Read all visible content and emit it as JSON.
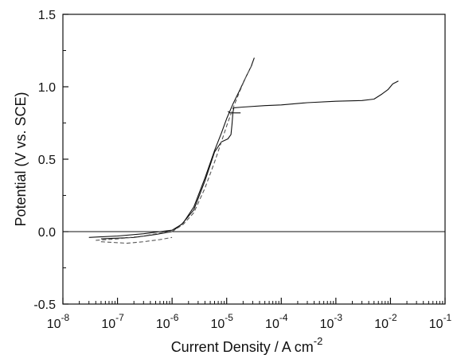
{
  "chart_data": {
    "type": "line",
    "title": "",
    "xlabel": "Current Density / A cm",
    "xlabel_superscript": "-2",
    "ylabel": "Potential (V vs. SCE)",
    "x_scale": "log",
    "xlim": [
      1e-08,
      0.1
    ],
    "ylim": [
      -0.5,
      1.5
    ],
    "x_ticks": [
      {
        "value": 1e-08,
        "base": "10",
        "exp": "-8"
      },
      {
        "value": 1e-07,
        "base": "10",
        "exp": "-7"
      },
      {
        "value": 1e-06,
        "base": "10",
        "exp": "-6"
      },
      {
        "value": 1e-05,
        "base": "10",
        "exp": "-5"
      },
      {
        "value": 0.0001,
        "base": "10",
        "exp": "-4"
      },
      {
        "value": 0.001,
        "base": "10",
        "exp": "-3"
      },
      {
        "value": 0.01,
        "base": "10",
        "exp": "-2"
      },
      {
        "value": 0.1,
        "base": "10",
        "exp": "-1"
      }
    ],
    "y_ticks": [
      {
        "value": -0.5,
        "label": "-0.5"
      },
      {
        "value": 0.0,
        "label": "0.0"
      },
      {
        "value": 0.5,
        "label": "0.5"
      },
      {
        "value": 1.0,
        "label": "1.0"
      },
      {
        "value": 1.5,
        "label": "1.5"
      }
    ],
    "grid": false,
    "reference_lines": [
      {
        "axis": "y",
        "value": 0.0
      }
    ],
    "series": [
      {
        "style": "solid",
        "color": "#111111",
        "points": [
          [
            3e-08,
            -0.04
          ],
          [
            1e-07,
            -0.03
          ],
          [
            3e-07,
            -0.015
          ],
          [
            6e-07,
            0.0
          ],
          [
            1e-06,
            0.01
          ],
          [
            1.5e-06,
            0.05
          ],
          [
            2.5e-06,
            0.15
          ],
          [
            4e-06,
            0.35
          ],
          [
            6e-06,
            0.55
          ],
          [
            8e-06,
            0.62
          ],
          [
            1.05e-05,
            0.64
          ],
          [
            1.2e-05,
            0.67
          ],
          [
            1.25e-05,
            0.74
          ],
          [
            1.3e-05,
            0.82
          ],
          [
            1.35e-05,
            0.855
          ],
          [
            2e-05,
            0.86
          ],
          [
            5e-05,
            0.87
          ],
          [
            0.0001,
            0.875
          ],
          [
            0.0003,
            0.89
          ],
          [
            0.001,
            0.9
          ],
          [
            0.003,
            0.905
          ],
          [
            0.005,
            0.915
          ],
          [
            0.007,
            0.95
          ],
          [
            0.009,
            0.98
          ],
          [
            0.011,
            1.02
          ],
          [
            0.014,
            1.04
          ]
        ]
      },
      {
        "style": "solid",
        "color": "#111111",
        "points": [
          [
            5e-08,
            -0.05
          ],
          [
            2e-07,
            -0.04
          ],
          [
            5e-07,
            -0.02
          ],
          [
            1e-06,
            0.0
          ],
          [
            1.6e-06,
            0.06
          ],
          [
            2.5e-06,
            0.17
          ],
          [
            4e-06,
            0.37
          ],
          [
            6e-06,
            0.56
          ],
          [
            8e-06,
            0.68
          ],
          [
            1e-05,
            0.78
          ],
          [
            1.3e-05,
            0.88
          ],
          [
            1.7e-05,
            0.97
          ],
          [
            2.2e-05,
            1.06
          ],
          [
            2.8e-05,
            1.14
          ],
          [
            3.2e-05,
            1.2
          ]
        ]
      },
      {
        "style": "solid",
        "color": "#111111",
        "points": [
          [
            1.05e-05,
            0.83
          ],
          [
            1.15e-05,
            0.82
          ],
          [
            1.4e-05,
            0.82
          ],
          [
            1.8e-05,
            0.82
          ]
        ]
      },
      {
        "style": "dashed",
        "color": "#555555",
        "points": [
          [
            4e-08,
            -0.06
          ],
          [
            1e-07,
            -0.05
          ],
          [
            3e-07,
            -0.03
          ],
          [
            6e-07,
            -0.01
          ],
          [
            1e-06,
            0.0
          ],
          [
            1.6e-06,
            0.05
          ],
          [
            2.5e-06,
            0.13
          ],
          [
            4e-06,
            0.3
          ],
          [
            6e-06,
            0.48
          ],
          [
            8e-06,
            0.62
          ],
          [
            1e-05,
            0.73
          ],
          [
            1.3e-05,
            0.85
          ],
          [
            1.7e-05,
            0.96
          ],
          [
            2.2e-05,
            1.06
          ],
          [
            3e-05,
            1.16
          ]
        ]
      },
      {
        "style": "dashed",
        "color": "#555555",
        "points": [
          [
            5e-08,
            -0.07
          ],
          [
            1.5e-07,
            -0.08
          ],
          [
            3e-07,
            -0.07
          ],
          [
            6e-07,
            -0.055
          ],
          [
            1e-06,
            -0.04
          ]
        ]
      }
    ]
  }
}
